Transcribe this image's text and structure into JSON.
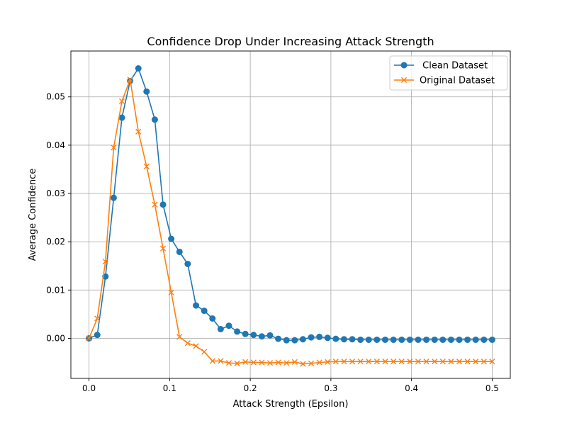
{
  "chart_data": {
    "type": "line",
    "title": "Confidence Drop Under Increasing Attack Strength",
    "xlabel": "Attack Strength (Epsilon)",
    "ylabel": "Average Confidence",
    "xlim": [
      -0.0225,
      0.5225
    ],
    "ylim": [
      -0.0083,
      0.0595
    ],
    "xticks": [
      0.0,
      0.1,
      0.2,
      0.3,
      0.4,
      0.5
    ],
    "yticks": [
      0.0,
      0.01,
      0.02,
      0.03,
      0.04,
      0.05
    ],
    "xtick_labels": [
      "0.0",
      "0.1",
      "0.2",
      "0.3",
      "0.4",
      "0.5"
    ],
    "ytick_labels": [
      "0.00",
      "0.01",
      "0.02",
      "0.03",
      "0.04",
      "0.05"
    ],
    "grid": true,
    "legend_position": "top-right",
    "x": [
      0.0,
      0.0102,
      0.0204,
      0.0306,
      0.0408,
      0.051,
      0.0612,
      0.0714,
      0.0816,
      0.0918,
      0.102,
      0.1122,
      0.1224,
      0.1327,
      0.1429,
      0.1531,
      0.1633,
      0.1735,
      0.1837,
      0.1939,
      0.2041,
      0.2143,
      0.2245,
      0.2347,
      0.2449,
      0.2551,
      0.2653,
      0.2755,
      0.2857,
      0.2959,
      0.3061,
      0.3163,
      0.3265,
      0.3367,
      0.3469,
      0.3571,
      0.3673,
      0.3776,
      0.3878,
      0.398,
      0.4082,
      0.4184,
      0.4286,
      0.4388,
      0.449,
      0.4592,
      0.4694,
      0.4796,
      0.4898,
      0.5
    ],
    "series": [
      {
        "name": " Clean Dataset",
        "color": "#1f77b4",
        "marker": "circle",
        "values": [
          0.0,
          0.0007,
          0.0128,
          0.0291,
          0.0457,
          0.0533,
          0.0559,
          0.0511,
          0.0453,
          0.0277,
          0.0206,
          0.0179,
          0.0154,
          0.0068,
          0.0057,
          0.0041,
          0.0019,
          0.0026,
          0.0014,
          0.0009,
          0.0007,
          0.0004,
          0.0006,
          -0.0001,
          -0.0004,
          -0.0004,
          -0.0002,
          0.0002,
          0.0003,
          0.0001,
          -0.0001,
          -0.0002,
          -0.0002,
          -0.0003,
          -0.0003,
          -0.0003,
          -0.0003,
          -0.0003,
          -0.0003,
          -0.0003,
          -0.0003,
          -0.0003,
          -0.0003,
          -0.0003,
          -0.0003,
          -0.0003,
          -0.0003,
          -0.0003,
          -0.0003,
          -0.0003
        ]
      },
      {
        "name": "Original Dataset",
        "color": "#ff7f0e",
        "marker": "x",
        "values": [
          0.0,
          0.0041,
          0.0159,
          0.0395,
          0.0491,
          0.0536,
          0.0428,
          0.0356,
          0.0277,
          0.0186,
          0.0095,
          0.0003,
          -0.001,
          -0.0016,
          -0.0028,
          -0.0047,
          -0.0047,
          -0.0051,
          -0.0052,
          -0.0049,
          -0.005,
          -0.005,
          -0.0051,
          -0.005,
          -0.0051,
          -0.0049,
          -0.0053,
          -0.0052,
          -0.005,
          -0.0049,
          -0.0048,
          -0.0048,
          -0.0048,
          -0.0048,
          -0.0048,
          -0.0048,
          -0.0048,
          -0.0048,
          -0.0048,
          -0.0048,
          -0.0048,
          -0.0048,
          -0.0048,
          -0.0048,
          -0.0048,
          -0.0048,
          -0.0048,
          -0.0048,
          -0.0048,
          -0.0048
        ]
      }
    ]
  }
}
